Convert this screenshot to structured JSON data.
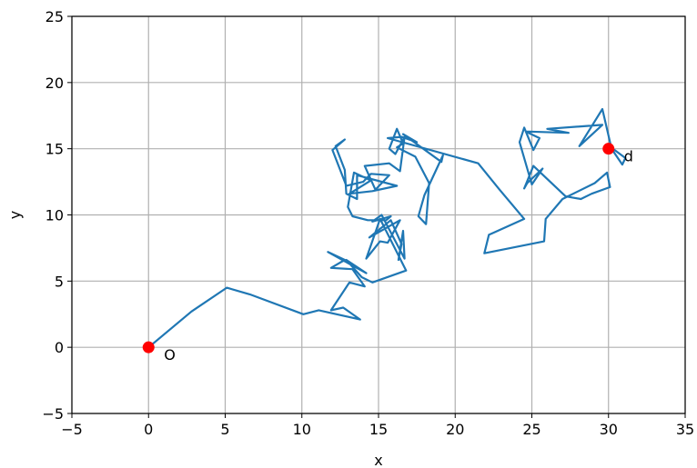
{
  "chart_data": {
    "type": "line",
    "title": "",
    "xlabel": "x",
    "ylabel": "y",
    "xlim": [
      -5,
      35
    ],
    "ylim": [
      -5,
      25
    ],
    "xticks": [
      -5,
      0,
      5,
      10,
      15,
      20,
      25,
      30,
      35
    ],
    "yticks": [
      -5,
      0,
      5,
      10,
      15,
      20,
      25
    ],
    "grid": true,
    "colors": {
      "path": "#1f77b4",
      "points": "#ff0000",
      "grid": "#b0b0b0"
    },
    "series": [
      {
        "x": [
          0,
          2.8,
          5.1,
          6.6,
          10.1,
          11.1,
          13.8,
          12.7,
          11.9,
          13.1,
          14.1,
          13.3,
          11.9,
          12.8,
          11.7,
          14.2,
          12.9,
          13.9,
          14.6,
          16.8,
          15.1,
          14.2,
          15.1,
          15.6,
          16.4,
          14.4,
          15.8,
          16.5,
          16.3,
          16.6,
          16.7,
          15.2,
          14.6,
          15.8,
          15.5,
          14.3,
          13.3,
          13.0,
          13.4,
          14.5,
          13.1,
          14.6,
          16.2,
          13.6,
          13.6,
          12.9,
          12.8,
          12.2,
          12.8,
          12.0,
          12.9,
          14.0,
          14.5,
          15.7,
          14.8,
          14.1,
          15.7,
          16.4,
          16.7,
          16.1,
          15.7,
          16.2,
          16.6,
          16.2,
          17.4,
          18.3,
          18.1,
          17.6,
          18.0,
          19.2,
          19.1,
          16.6,
          17.5,
          16.5,
          15.6,
          21.5,
          22.9,
          24.5,
          22.2,
          21.9,
          25.8,
          25.9,
          27.0,
          29.1,
          29.9,
          30.1,
          28.9,
          28.2,
          27.2,
          25.1,
          24.5,
          24.7,
          25.7,
          25.0,
          24.2,
          24.5,
          25.1,
          25.5,
          24.6,
          27.4,
          26.0,
          29.6,
          28.1,
          29.6,
          30.2,
          30.9,
          31.1,
          30.4,
          30.0
        ],
        "y": [
          0,
          2.7,
          4.5,
          4.0,
          2.5,
          2.8,
          2.1,
          3.0,
          2.8,
          4.9,
          4.6,
          5.9,
          6.0,
          6.6,
          7.2,
          5.6,
          6.6,
          5.3,
          4.9,
          5.8,
          9.7,
          6.7,
          8.0,
          7.9,
          9.6,
          8.3,
          9.6,
          7.8,
          6.6,
          8.8,
          6.7,
          10.0,
          9.5,
          9.9,
          9.6,
          9.6,
          9.9,
          10.6,
          13.2,
          12.6,
          11.6,
          11.8,
          12.2,
          13.0,
          11.2,
          11.6,
          13.4,
          15.2,
          15.7,
          14.9,
          12.2,
          12.5,
          13.1,
          13.0,
          11.9,
          13.7,
          13.9,
          13.3,
          15.9,
          14.6,
          15.0,
          16.5,
          15.4,
          15.1,
          14.4,
          12.4,
          9.3,
          9.9,
          11.5,
          14.5,
          14.0,
          16.1,
          15.5,
          15.9,
          15.8,
          13.9,
          11.9,
          9.7,
          8.5,
          7.1,
          8.0,
          9.7,
          11.2,
          12.4,
          13.2,
          12.1,
          11.6,
          11.2,
          11.4,
          13.7,
          12.0,
          12.4,
          13.5,
          12.3,
          15.5,
          16.6,
          14.9,
          15.8,
          16.3,
          16.2,
          16.5,
          16.8,
          15.2,
          18.0,
          15.0,
          13.8,
          14.3,
          14.9,
          15.0
        ]
      }
    ],
    "points": [
      {
        "label": "O",
        "x": 0,
        "y": 0
      },
      {
        "label": "d",
        "x": 30,
        "y": 15
      }
    ]
  }
}
